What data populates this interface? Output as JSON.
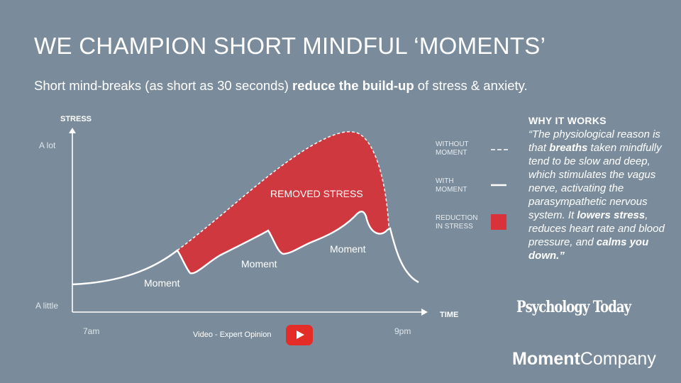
{
  "slide": {
    "title": "WE CHAMPION SHORT MINDFUL ‘MOMENTS’",
    "subtitle_pre": "Short mind-breaks (as short as 30 seconds) ",
    "subtitle_bold": "reduce the build-up",
    "subtitle_post": " of stress & anxiety."
  },
  "chart": {
    "y_axis_label": "STRESS",
    "x_axis_label": "TIME",
    "y_high_label": "A lot",
    "y_low_label": "A little",
    "x_start_label": "7am",
    "x_end_label": "9pm",
    "area_label": "REMOVED STRESS",
    "moment_labels": [
      "Moment",
      "Moment",
      "Moment"
    ]
  },
  "legend": [
    {
      "label": "WITHOUT MOMENT",
      "swatch": "dashed-line"
    },
    {
      "label": "WITH MOMENT",
      "swatch": "solid-line"
    },
    {
      "label": "REDUCTION IN STRESS",
      "swatch": "red-square",
      "color": "#d9323b"
    }
  ],
  "why": {
    "heading": "WHY IT WORKS",
    "q1": "“The physiological reason is that ",
    "b1": "breaths",
    "q2": " taken mindfully tend to be slow and deep, which stimulates the vagus nerve, activating the parasympathetic nervous system. It ",
    "b2": "lowers stress",
    "q3": ", reduces heart rate and blood pressure, and ",
    "b3": "calms you down.”"
  },
  "source_logo": "Psychology Today",
  "video": {
    "label": "Video - Expert Opinion",
    "icon": "youtube-play-icon"
  },
  "brand": {
    "bold": "Moment",
    "regular": "Company"
  },
  "colors": {
    "background": "#7a8c9b",
    "reduction": "#d0383f",
    "youtube": "#e52d27"
  }
}
